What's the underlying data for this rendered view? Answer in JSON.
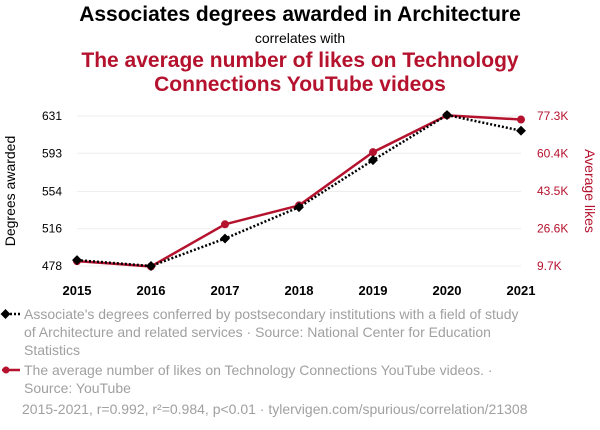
{
  "header": {
    "title": "Associates degrees awarded in Architecture",
    "subtitle": "correlates with",
    "title2_line1": "The average number of likes on Technology",
    "title2_line2": "Connections YouTube videos"
  },
  "colors": {
    "series1": "#000000",
    "series2": "#b5122e",
    "muted": "#a0a0a0",
    "grid": "#eeeeee"
  },
  "chart_data": {
    "type": "line",
    "x": [
      2015,
      2016,
      2017,
      2018,
      2019,
      2020,
      2021
    ],
    "xticks": [
      "2015",
      "2016",
      "2017",
      "2018",
      "2019",
      "2020",
      "2021"
    ],
    "series": [
      {
        "name": "Associate's degrees conferred by postsecondary institutions with a field of study of Architecture and related services",
        "axis": "left",
        "values": [
          484,
          478,
          506,
          538,
          586,
          632,
          616
        ]
      },
      {
        "name": "The average number of likes on Technology Connections YouTube videos",
        "axis": "right",
        "values": [
          11900,
          9500,
          28500,
          37000,
          61000,
          77600,
          75700
        ]
      }
    ],
    "ylabel_left": "Degrees awarded",
    "ylabel_right": "Average likes",
    "yticks_left": [
      631,
      593,
      554,
      516,
      478
    ],
    "yticks_right": [
      "77.3K",
      "60.4K",
      "43.5K",
      "26.6K",
      "9.7K"
    ],
    "ylim_left": [
      478,
      631
    ],
    "ylim_right": [
      9700,
      77300
    ],
    "grid": true
  },
  "legend": {
    "item1": "Associate's degrees conferred by postsecondary institutions with a field of study of Architecture and related services · Source: National Center for Education Statistics",
    "item2": "The average number of likes on Technology Connections YouTube videos. · Source: YouTube"
  },
  "footer": "2015-2021, r=0.992, r²=0.984, p<0.01 · tylervigen.com/spurious/correlation/21308"
}
